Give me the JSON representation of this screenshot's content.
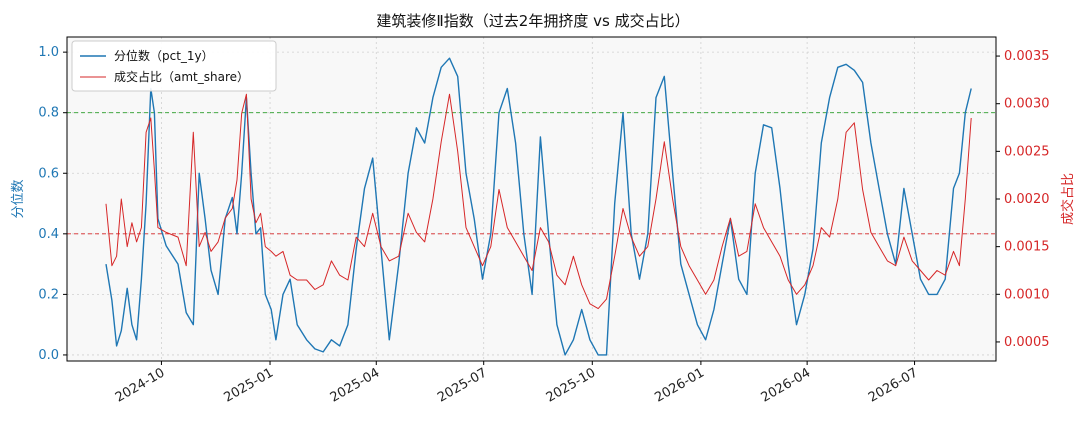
{
  "chart_data": {
    "type": "line",
    "title": "建筑装修Ⅱ指数（过去2年拥挤度 vs 成交占比）",
    "y_left_label": "分位数",
    "y_right_label": "成交占比",
    "y_left_ticks": [
      "0.0",
      "0.2",
      "0.4",
      "0.6",
      "0.8",
      "1.0"
    ],
    "y_right_ticks": [
      "0.0005",
      "0.0010",
      "0.0015",
      "0.0020",
      "0.0025",
      "0.0030",
      "0.0035"
    ],
    "x_ticks": [
      "2024-10",
      "2025-01",
      "2025-04",
      "2025-07",
      "2025-10",
      "2026-01",
      "2026-04",
      "2026-07"
    ],
    "y_left_lim": [
      -0.02,
      1.05
    ],
    "y_right_lim": [
      0.0003,
      0.0037
    ],
    "x_range": [
      "2024-07-13",
      "2026-09-08"
    ],
    "hlines": [
      {
        "y": 0.8,
        "axis": "left",
        "color": "#2ca02c"
      },
      {
        "y": 0.4,
        "axis": "left",
        "color": "#d62728"
      }
    ],
    "legend_position": "top-left",
    "grid": true,
    "series": [
      {
        "name": "分位数（pct_1y）",
        "axis": "left",
        "color": "#1f77b4",
        "points": [
          [
            "2024-08-15",
            0.3
          ],
          [
            "2024-08-20",
            0.18
          ],
          [
            "2024-08-24",
            0.03
          ],
          [
            "2024-08-28",
            0.08
          ],
          [
            "2024-09-02",
            0.22
          ],
          [
            "2024-09-06",
            0.1
          ],
          [
            "2024-09-10",
            0.05
          ],
          [
            "2024-09-14",
            0.25
          ],
          [
            "2024-09-18",
            0.5
          ],
          [
            "2024-09-22",
            0.88
          ],
          [
            "2024-09-25",
            0.8
          ],
          [
            "2024-09-28",
            0.45
          ],
          [
            "2024-10-05",
            0.36
          ],
          [
            "2024-10-15",
            0.3
          ],
          [
            "2024-10-22",
            0.14
          ],
          [
            "2024-10-28",
            0.1
          ],
          [
            "2024-11-02",
            0.6
          ],
          [
            "2024-11-07",
            0.45
          ],
          [
            "2024-11-12",
            0.28
          ],
          [
            "2024-11-18",
            0.2
          ],
          [
            "2024-11-24",
            0.45
          ],
          [
            "2024-11-30",
            0.52
          ],
          [
            "2024-12-04",
            0.4
          ],
          [
            "2024-12-08",
            0.6
          ],
          [
            "2024-12-12",
            0.85
          ],
          [
            "2024-12-16",
            0.6
          ],
          [
            "2024-12-20",
            0.4
          ],
          [
            "2024-12-24",
            0.42
          ],
          [
            "2024-12-28",
            0.2
          ],
          [
            "2025-01-02",
            0.15
          ],
          [
            "2025-01-06",
            0.05
          ],
          [
            "2025-01-12",
            0.2
          ],
          [
            "2025-01-18",
            0.25
          ],
          [
            "2025-01-24",
            0.1
          ],
          [
            "2025-02-01",
            0.05
          ],
          [
            "2025-02-08",
            0.02
          ],
          [
            "2025-02-15",
            0.01
          ],
          [
            "2025-02-22",
            0.05
          ],
          [
            "2025-03-01",
            0.03
          ],
          [
            "2025-03-08",
            0.1
          ],
          [
            "2025-03-15",
            0.35
          ],
          [
            "2025-03-22",
            0.55
          ],
          [
            "2025-03-29",
            0.65
          ],
          [
            "2025-04-05",
            0.35
          ],
          [
            "2025-04-12",
            0.05
          ],
          [
            "2025-04-20",
            0.3
          ],
          [
            "2025-04-28",
            0.6
          ],
          [
            "2025-05-05",
            0.75
          ],
          [
            "2025-05-12",
            0.7
          ],
          [
            "2025-05-19",
            0.85
          ],
          [
            "2025-05-26",
            0.95
          ],
          [
            "2025-06-02",
            0.98
          ],
          [
            "2025-06-09",
            0.92
          ],
          [
            "2025-06-16",
            0.6
          ],
          [
            "2025-06-23",
            0.45
          ],
          [
            "2025-06-30",
            0.25
          ],
          [
            "2025-07-07",
            0.4
          ],
          [
            "2025-07-14",
            0.8
          ],
          [
            "2025-07-21",
            0.88
          ],
          [
            "2025-07-28",
            0.7
          ],
          [
            "2025-08-04",
            0.4
          ],
          [
            "2025-08-11",
            0.2
          ],
          [
            "2025-08-18",
            0.72
          ],
          [
            "2025-08-25",
            0.4
          ],
          [
            "2025-09-01",
            0.1
          ],
          [
            "2025-09-08",
            0.0
          ],
          [
            "2025-09-15",
            0.05
          ],
          [
            "2025-09-22",
            0.15
          ],
          [
            "2025-09-29",
            0.05
          ],
          [
            "2025-10-06",
            0.0
          ],
          [
            "2025-10-13",
            0.0
          ],
          [
            "2025-10-20",
            0.5
          ],
          [
            "2025-10-27",
            0.8
          ],
          [
            "2025-11-03",
            0.4
          ],
          [
            "2025-11-10",
            0.25
          ],
          [
            "2025-11-17",
            0.4
          ],
          [
            "2025-11-24",
            0.85
          ],
          [
            "2025-12-01",
            0.92
          ],
          [
            "2025-12-08",
            0.6
          ],
          [
            "2025-12-15",
            0.3
          ],
          [
            "2025-12-22",
            0.2
          ],
          [
            "2025-12-29",
            0.1
          ],
          [
            "2026-01-05",
            0.05
          ],
          [
            "2026-01-12",
            0.15
          ],
          [
            "2026-01-19",
            0.3
          ],
          [
            "2026-01-26",
            0.45
          ],
          [
            "2026-02-02",
            0.25
          ],
          [
            "2026-02-09",
            0.2
          ],
          [
            "2026-02-16",
            0.6
          ],
          [
            "2026-02-23",
            0.76
          ],
          [
            "2026-03-02",
            0.75
          ],
          [
            "2026-03-09",
            0.55
          ],
          [
            "2026-03-16",
            0.3
          ],
          [
            "2026-03-23",
            0.1
          ],
          [
            "2026-03-30",
            0.2
          ],
          [
            "2026-04-06",
            0.35
          ],
          [
            "2026-04-13",
            0.7
          ],
          [
            "2026-04-20",
            0.85
          ],
          [
            "2026-04-27",
            0.95
          ],
          [
            "2026-05-04",
            0.96
          ],
          [
            "2026-05-11",
            0.94
          ],
          [
            "2026-05-18",
            0.9
          ],
          [
            "2026-05-25",
            0.7
          ],
          [
            "2026-06-01",
            0.55
          ],
          [
            "2026-06-08",
            0.4
          ],
          [
            "2026-06-15",
            0.3
          ],
          [
            "2026-06-22",
            0.55
          ],
          [
            "2026-06-29",
            0.4
          ],
          [
            "2026-07-06",
            0.25
          ],
          [
            "2026-07-13",
            0.2
          ],
          [
            "2026-07-20",
            0.2
          ],
          [
            "2026-07-27",
            0.25
          ],
          [
            "2026-08-03",
            0.55
          ],
          [
            "2026-08-08",
            0.6
          ],
          [
            "2026-08-13",
            0.8
          ],
          [
            "2026-08-18",
            0.88
          ]
        ]
      },
      {
        "name": "成交占比（amt_share）",
        "axis": "right",
        "color": "#d62728",
        "points": [
          [
            "2024-08-15",
            0.00195
          ],
          [
            "2024-08-20",
            0.0013
          ],
          [
            "2024-08-24",
            0.0014
          ],
          [
            "2024-08-28",
            0.002
          ],
          [
            "2024-09-02",
            0.0015
          ],
          [
            "2024-09-06",
            0.00175
          ],
          [
            "2024-09-10",
            0.00155
          ],
          [
            "2024-09-14",
            0.0017
          ],
          [
            "2024-09-18",
            0.0027
          ],
          [
            "2024-09-22",
            0.00285
          ],
          [
            "2024-09-25",
            0.0023
          ],
          [
            "2024-09-28",
            0.0017
          ],
          [
            "2024-10-05",
            0.00165
          ],
          [
            "2024-10-15",
            0.0016
          ],
          [
            "2024-10-22",
            0.0013
          ],
          [
            "2024-10-28",
            0.0027
          ],
          [
            "2024-11-02",
            0.0015
          ],
          [
            "2024-11-07",
            0.00165
          ],
          [
            "2024-11-12",
            0.00145
          ],
          [
            "2024-11-18",
            0.00155
          ],
          [
            "2024-11-24",
            0.0018
          ],
          [
            "2024-11-30",
            0.0019
          ],
          [
            "2024-12-04",
            0.0022
          ],
          [
            "2024-12-08",
            0.0029
          ],
          [
            "2024-12-12",
            0.0031
          ],
          [
            "2024-12-16",
            0.002
          ],
          [
            "2024-12-20",
            0.00175
          ],
          [
            "2024-12-24",
            0.00185
          ],
          [
            "2024-12-28",
            0.0015
          ],
          [
            "2025-01-02",
            0.00145
          ],
          [
            "2025-01-06",
            0.0014
          ],
          [
            "2025-01-12",
            0.00145
          ],
          [
            "2025-01-18",
            0.0012
          ],
          [
            "2025-01-24",
            0.00115
          ],
          [
            "2025-02-01",
            0.00115
          ],
          [
            "2025-02-08",
            0.00105
          ],
          [
            "2025-02-15",
            0.0011
          ],
          [
            "2025-02-22",
            0.00135
          ],
          [
            "2025-03-01",
            0.0012
          ],
          [
            "2025-03-08",
            0.00115
          ],
          [
            "2025-03-15",
            0.0016
          ],
          [
            "2025-03-22",
            0.0015
          ],
          [
            "2025-03-29",
            0.00185
          ],
          [
            "2025-04-05",
            0.0015
          ],
          [
            "2025-04-12",
            0.00135
          ],
          [
            "2025-04-20",
            0.0014
          ],
          [
            "2025-04-28",
            0.00185
          ],
          [
            "2025-05-05",
            0.00165
          ],
          [
            "2025-05-12",
            0.00155
          ],
          [
            "2025-05-19",
            0.002
          ],
          [
            "2025-05-26",
            0.0026
          ],
          [
            "2025-06-02",
            0.0031
          ],
          [
            "2025-06-09",
            0.0025
          ],
          [
            "2025-06-16",
            0.0017
          ],
          [
            "2025-06-23",
            0.0015
          ],
          [
            "2025-06-30",
            0.0013
          ],
          [
            "2025-07-07",
            0.0015
          ],
          [
            "2025-07-14",
            0.0021
          ],
          [
            "2025-07-21",
            0.0017
          ],
          [
            "2025-07-28",
            0.00155
          ],
          [
            "2025-08-04",
            0.0014
          ],
          [
            "2025-08-11",
            0.00125
          ],
          [
            "2025-08-18",
            0.0017
          ],
          [
            "2025-08-25",
            0.00155
          ],
          [
            "2025-09-01",
            0.0012
          ],
          [
            "2025-09-08",
            0.0011
          ],
          [
            "2025-09-15",
            0.0014
          ],
          [
            "2025-09-22",
            0.0011
          ],
          [
            "2025-09-29",
            0.0009
          ],
          [
            "2025-10-06",
            0.00085
          ],
          [
            "2025-10-13",
            0.00095
          ],
          [
            "2025-10-20",
            0.0014
          ],
          [
            "2025-10-27",
            0.0019
          ],
          [
            "2025-11-03",
            0.0016
          ],
          [
            "2025-11-10",
            0.0014
          ],
          [
            "2025-11-17",
            0.0015
          ],
          [
            "2025-11-24",
            0.002
          ],
          [
            "2025-12-01",
            0.0026
          ],
          [
            "2025-12-08",
            0.002
          ],
          [
            "2025-12-15",
            0.0015
          ],
          [
            "2025-12-22",
            0.0013
          ],
          [
            "2025-12-29",
            0.00115
          ],
          [
            "2026-01-05",
            0.001
          ],
          [
            "2026-01-12",
            0.00115
          ],
          [
            "2026-01-19",
            0.0015
          ],
          [
            "2026-01-26",
            0.0018
          ],
          [
            "2026-02-02",
            0.0014
          ],
          [
            "2026-02-09",
            0.00145
          ],
          [
            "2026-02-16",
            0.00195
          ],
          [
            "2026-02-23",
            0.0017
          ],
          [
            "2026-03-02",
            0.00155
          ],
          [
            "2026-03-09",
            0.0014
          ],
          [
            "2026-03-16",
            0.00115
          ],
          [
            "2026-03-23",
            0.001
          ],
          [
            "2026-03-30",
            0.0011
          ],
          [
            "2026-04-06",
            0.0013
          ],
          [
            "2026-04-13",
            0.0017
          ],
          [
            "2026-04-20",
            0.0016
          ],
          [
            "2026-04-27",
            0.002
          ],
          [
            "2026-05-04",
            0.0027
          ],
          [
            "2026-05-11",
            0.0028
          ],
          [
            "2026-05-18",
            0.0021
          ],
          [
            "2026-05-25",
            0.00165
          ],
          [
            "2026-06-01",
            0.0015
          ],
          [
            "2026-06-08",
            0.00135
          ],
          [
            "2026-06-15",
            0.0013
          ],
          [
            "2026-06-22",
            0.0016
          ],
          [
            "2026-06-29",
            0.00135
          ],
          [
            "2026-07-06",
            0.00125
          ],
          [
            "2026-07-13",
            0.00115
          ],
          [
            "2026-07-20",
            0.00125
          ],
          [
            "2026-07-27",
            0.0012
          ],
          [
            "2026-08-03",
            0.00145
          ],
          [
            "2026-08-08",
            0.0013
          ],
          [
            "2026-08-13",
            0.002
          ],
          [
            "2026-08-18",
            0.00285
          ]
        ]
      }
    ]
  }
}
